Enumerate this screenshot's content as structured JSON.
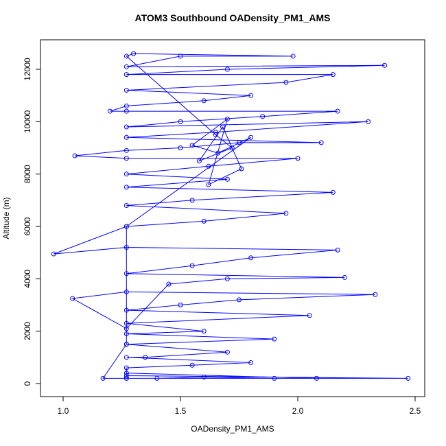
{
  "chart_data": {
    "type": "line",
    "markers": true,
    "title": "ATOM3 Southbound OADensity_PM1_AMS",
    "x_label": "OADensity_PM1_AMS",
    "y_label": "Altitude (m)",
    "color": "#0000ff",
    "x": [
      1.27,
      1.4,
      1.6,
      1.9,
      2.47,
      1.27,
      1.27,
      1.55,
      1.8,
      1.27,
      1.35,
      1.7,
      1.27,
      1.9,
      1.27,
      1.6,
      1.27,
      2.05,
      1.27,
      1.5,
      1.75,
      2.33,
      1.27,
      1.04,
      1.27,
      1.45,
      1.7,
      2.2,
      1.27,
      1.55,
      1.8,
      2.17,
      1.27,
      0.96,
      1.27,
      1.6,
      1.95,
      1.27,
      1.55,
      2.15,
      1.27,
      1.7,
      1.27,
      1.62,
      2.0,
      1.27,
      1.05,
      1.27,
      1.5,
      1.75,
      2.1,
      1.27,
      1.65,
      2.3,
      1.27,
      1.5,
      1.85,
      2.17,
      1.27,
      1.2,
      1.27,
      1.6,
      1.8,
      1.27,
      1.95,
      2.15,
      1.27,
      1.7,
      2.37,
      1.27,
      1.5,
      1.98,
      1.3,
      1.27,
      1.65,
      1.72,
      1.58,
      1.68,
      1.76,
      1.62,
      1.7,
      1.55,
      1.66,
      1.8,
      1.27,
      1.27,
      1.17,
      1.27,
      2.08,
      1.27
    ],
    "values": [
      200,
      200,
      250,
      200,
      200,
      300,
      600,
      700,
      800,
      1000,
      1000,
      1200,
      1500,
      1700,
      1900,
      2000,
      2300,
      2600,
      2800,
      3000,
      3200,
      3400,
      3500,
      3250,
      2100,
      3800,
      4000,
      4050,
      4200,
      4500,
      4800,
      5100,
      5200,
      4950,
      6000,
      6200,
      6500,
      6800,
      7000,
      7300,
      7500,
      7800,
      8000,
      8300,
      8600,
      8600,
      8700,
      8900,
      9000,
      9200,
      9200,
      9400,
      9600,
      10000,
      9800,
      10000,
      10200,
      10400,
      10400,
      10400,
      10600,
      10800,
      11000,
      11200,
      11500,
      11800,
      11800,
      12000,
      12150,
      12100,
      12500,
      12500,
      12600,
      12500,
      9500,
      9000,
      8500,
      9800,
      8200,
      7600,
      10100,
      9100,
      8800,
      9400,
      6000,
      1500,
      200,
      200,
      200,
      400
    ],
    "xlim": [
      0.9035,
      2.541
    ],
    "ylim": [
      -498,
      13127
    ],
    "xticks": [
      {
        "value": 1,
        "label": "1.0"
      },
      1.5,
      {
        "value": 2,
        "label": "2.0"
      },
      2.5
    ],
    "yticks": [
      0,
      2000,
      4000,
      6000,
      8000,
      10000,
      12000
    ]
  }
}
